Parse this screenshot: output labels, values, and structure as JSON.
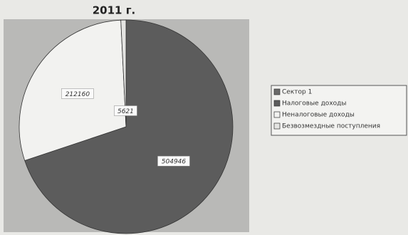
{
  "chart_data": {
    "type": "pie",
    "title": "2011 г.",
    "categories": [
      "Сектор 1",
      "Налоговые доходы",
      "Неналоговые доходы",
      "Безвозмездные поступления"
    ],
    "values": [
      null,
      504946,
      212160,
      5621
    ],
    "colors": [
      "#6a6a6a",
      "#5c5c5c",
      "#f2f2f0",
      "#e4e4e2"
    ]
  }
}
